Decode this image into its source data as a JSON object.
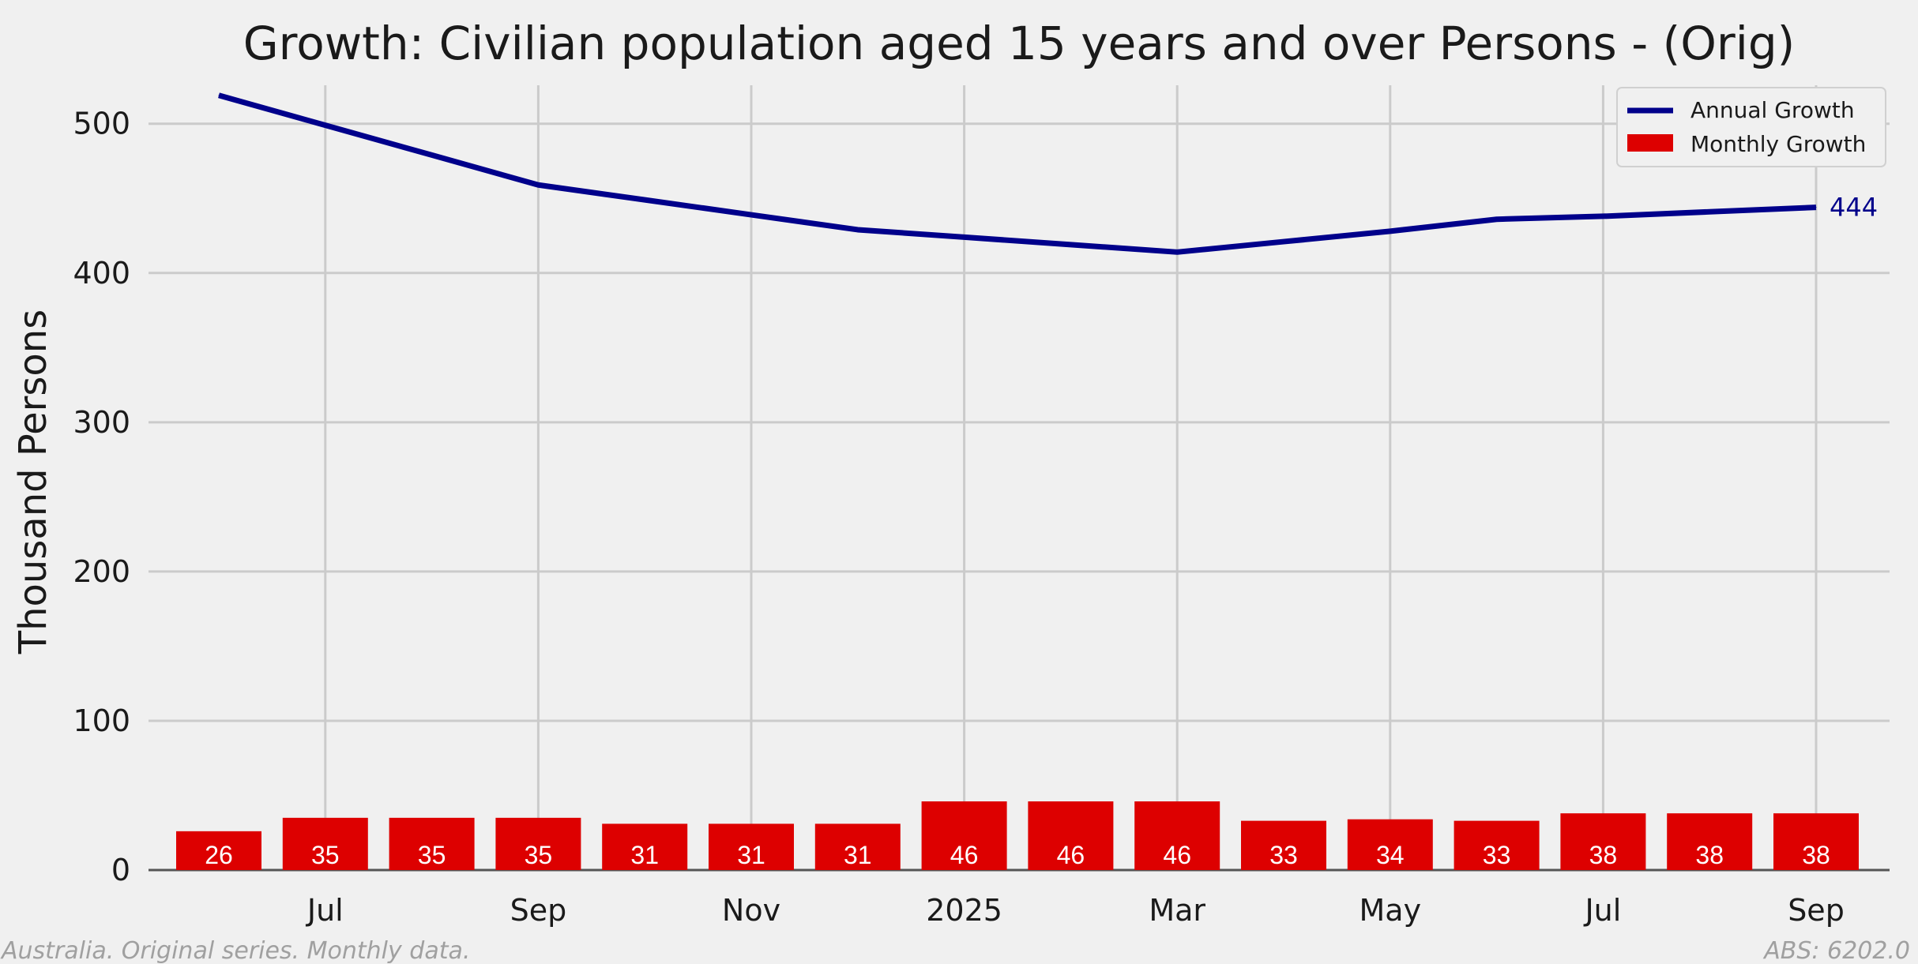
{
  "chart_data": {
    "type": "bar",
    "title": "Growth: Civilian population aged 15 years and over Persons - (Orig)",
    "ylabel": "Thousand Persons",
    "xlabel": "",
    "ylim": [
      0,
      530
    ],
    "yticks": [
      0,
      100,
      200,
      300,
      400,
      500
    ],
    "grid": true,
    "legend_placement": "top-right",
    "x": [
      "2024-06",
      "2024-07",
      "2024-08",
      "2024-09",
      "2024-10",
      "2024-11",
      "2024-12",
      "2025-01",
      "2025-02",
      "2025-03",
      "2025-04",
      "2025-05",
      "2025-06",
      "2025-07",
      "2025-08",
      "2025-09"
    ],
    "xtick_labels": [
      {
        "at": "2024-07",
        "label": "Jul"
      },
      {
        "at": "2024-09",
        "label": "Sep"
      },
      {
        "at": "2024-11",
        "label": "Nov"
      },
      {
        "at": "2025-01",
        "label": "2025"
      },
      {
        "at": "2025-03",
        "label": "Mar"
      },
      {
        "at": "2025-05",
        "label": "May"
      },
      {
        "at": "2025-07",
        "label": "Jul"
      },
      {
        "at": "2025-09",
        "label": "Sep"
      }
    ],
    "series": [
      {
        "name": "Annual Growth",
        "type": "line",
        "color": "#00008b",
        "values": [
          519,
          499,
          479,
          459,
          449,
          439,
          429,
          424,
          419,
          414,
          421,
          428,
          436,
          438,
          441,
          444
        ],
        "end_label": "444"
      },
      {
        "name": "Monthly Growth",
        "type": "bar",
        "color": "#dd0000",
        "values": [
          26,
          35,
          35,
          35,
          31,
          31,
          31,
          46,
          46,
          46,
          33,
          34,
          33,
          38,
          38,
          38
        ]
      }
    ]
  },
  "footer": {
    "left": "Australia. Original series. Monthly data.",
    "right": "ABS: 6202.0"
  }
}
